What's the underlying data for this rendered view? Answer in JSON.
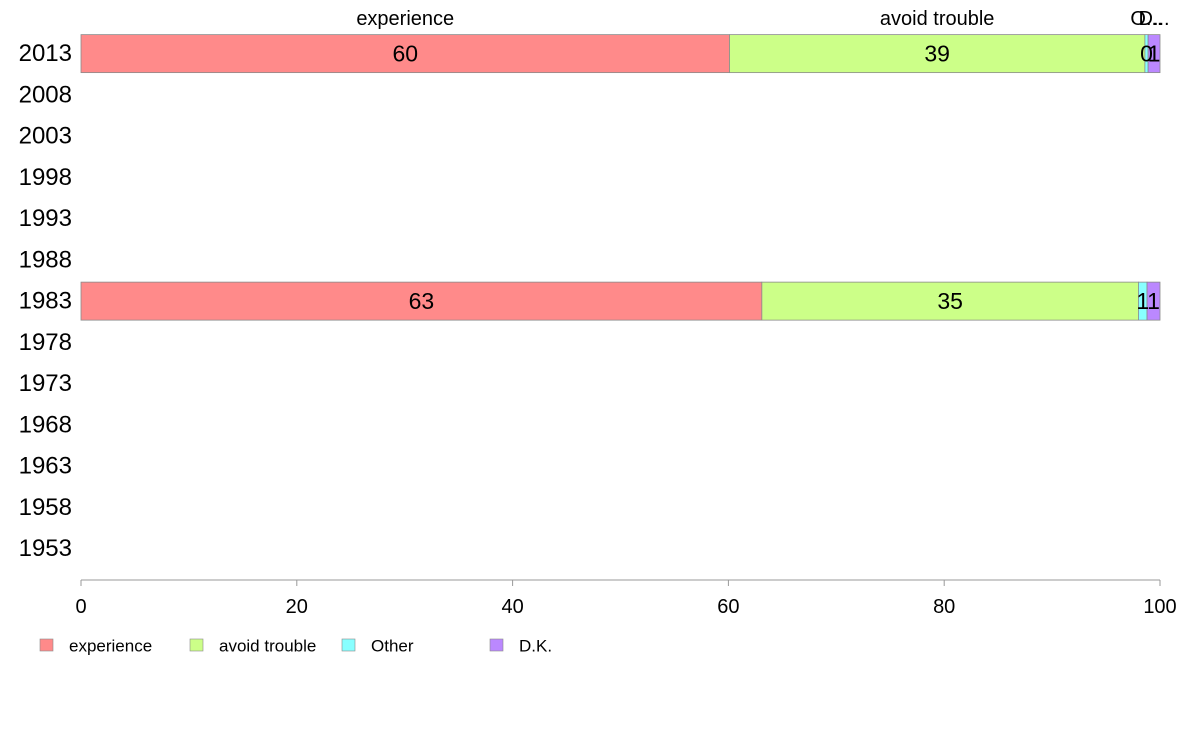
{
  "chart_data": {
    "type": "bar",
    "orientation": "horizontal",
    "stacked": true,
    "categories": [
      "1953",
      "1958",
      "1963",
      "1968",
      "1973",
      "1978",
      "1983",
      "1988",
      "1993",
      "1998",
      "2003",
      "2008",
      "2013"
    ],
    "series": [
      {
        "name": "experience",
        "color": "#ff8a8a",
        "values": [
          null,
          null,
          null,
          null,
          null,
          null,
          63.1,
          null,
          null,
          null,
          null,
          null,
          60.1
        ]
      },
      {
        "name": "avoid trouble",
        "color": "#ccff88",
        "values": [
          null,
          null,
          null,
          null,
          null,
          null,
          34.9,
          null,
          null,
          null,
          null,
          null,
          38.5
        ]
      },
      {
        "name": "Other",
        "color": "#88ffff",
        "values": [
          null,
          null,
          null,
          null,
          null,
          null,
          0.8,
          null,
          null,
          null,
          null,
          null,
          0.3
        ]
      },
      {
        "name": "D.K.",
        "color": "#bb88ff",
        "values": [
          null,
          null,
          null,
          null,
          null,
          null,
          1.2,
          null,
          null,
          null,
          null,
          null,
          1.1
        ]
      }
    ],
    "data_labels": {
      "1983": [
        "63",
        "35",
        "1",
        "1"
      ],
      "2013": [
        "60",
        "39",
        "0",
        "1"
      ]
    },
    "top_labels": [
      "experience",
      "avoid trouble",
      "O...",
      "D..."
    ],
    "x_ticks": [
      "0",
      "20",
      "40",
      "60",
      "80",
      "100"
    ],
    "xlim": [
      0,
      100
    ],
    "grid": false,
    "legend_position": "bottom-left"
  }
}
